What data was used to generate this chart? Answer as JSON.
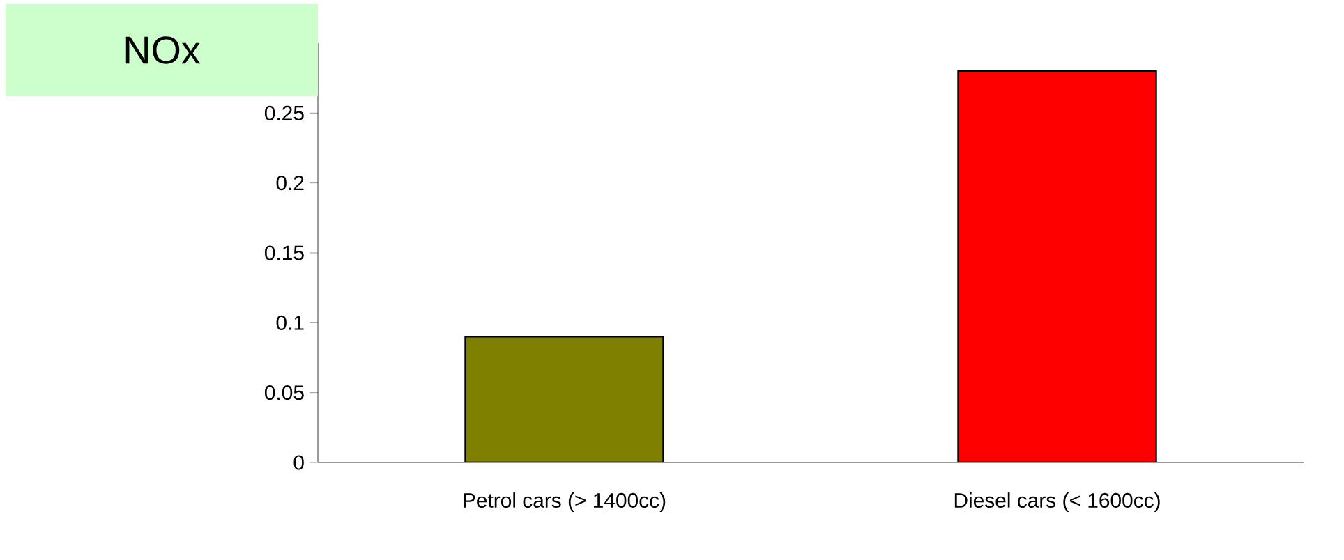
{
  "chart_data": {
    "type": "bar",
    "title": "NOx",
    "categories": [
      "Petrol cars (> 1400cc)",
      "Diesel cars (< 1600cc)"
    ],
    "values": [
      0.09,
      0.28
    ],
    "colors": [
      "#808000",
      "#ff0000"
    ],
    "ylim": [
      0,
      0.3
    ],
    "yticks": [
      0,
      0.05,
      0.1,
      0.15,
      0.2,
      0.25
    ],
    "grid": false
  }
}
